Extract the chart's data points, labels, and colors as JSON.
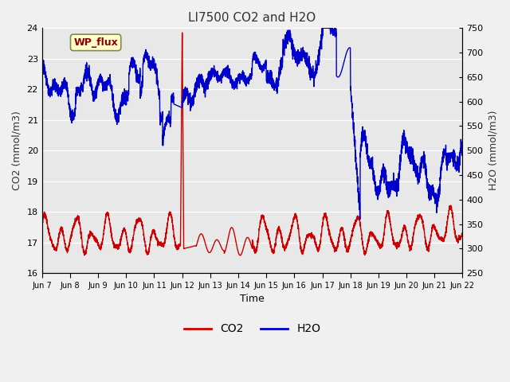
{
  "title": "LI7500 CO2 and H2O",
  "xlabel": "Time",
  "ylabel_left": "CO2 (mmol/m3)",
  "ylabel_right": "H2O (mmol/m3)",
  "ylim_left": [
    16.0,
    24.0
  ],
  "ylim_right": [
    250,
    750
  ],
  "co2_color": "#cc0000",
  "h2o_color": "#0000cc",
  "bg_color": "#e8e8e8",
  "legend_co2": "CO2",
  "legend_h2o": "H2O",
  "annotation_text": "WP_flux",
  "annotation_color": "#8b0000",
  "annotation_bg": "#ffffcc",
  "x_tick_labels": [
    "Jun 7",
    "Jun 8",
    "Jun 9",
    "Jun 10",
    "Jun 11",
    "Jun 12",
    "Jun 13",
    "Jun 14",
    "Jun 15",
    "Jun 16",
    "Jun 17",
    "Jun 18",
    "Jun 19",
    "Jun 20",
    "Jun 21",
    "Jun 22"
  ],
  "x_tick_positions": [
    0,
    1,
    2,
    3,
    4,
    5,
    6,
    7,
    8,
    9,
    10,
    11,
    12,
    13,
    14,
    15
  ],
  "spike_x": 5.0,
  "spike_co2_top": 23.85,
  "n_days": 15,
  "figwidth": 6.4,
  "figheight": 4.8,
  "dpi": 100
}
